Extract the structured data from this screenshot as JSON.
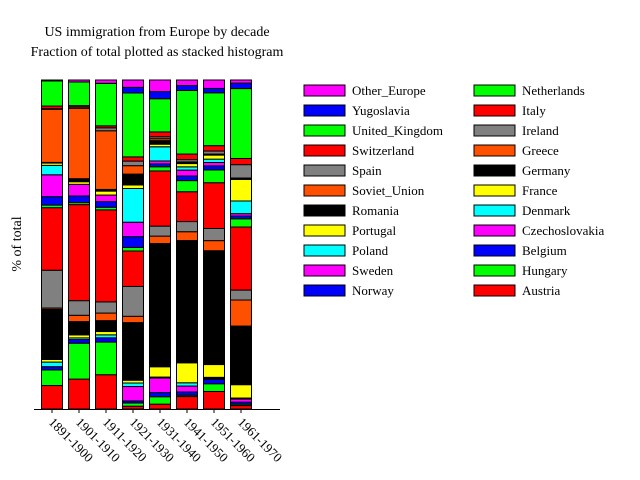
{
  "chart_data": {
    "type": "bar",
    "stacked": true,
    "title": "US immigration from Europe by decade",
    "subtitle": "Fraction of total plotted as stacked histogram",
    "xlabel": "",
    "ylabel": "% of total",
    "ylim": [
      0,
      100
    ],
    "grid": false,
    "legend_position": "right",
    "categories": [
      "1891-1900",
      "1901-1910",
      "1911-1920",
      "1921-1930",
      "1931-1940",
      "1941-1950",
      "1951-1960",
      "1961-1970"
    ],
    "series": [
      {
        "name": "Austria",
        "color": "#ff0000",
        "values": [
          7.2,
          9.0,
          10.4,
          0.8,
          1.5,
          3.8,
          5.2,
          1.0
        ]
      },
      {
        "name": "Hungary",
        "color": "#00ff00",
        "values": [
          4.8,
          10.8,
          9.9,
          0.9,
          2.3,
          0.4,
          2.3,
          0.4
        ]
      },
      {
        "name": "Belgium",
        "color": "#0000ff",
        "values": [
          1.0,
          1.1,
          1.3,
          0.6,
          1.3,
          1.0,
          1.3,
          0.6
        ]
      },
      {
        "name": "Czechoslovakia",
        "color": "#ff00ff",
        "values": [
          0.0,
          0.0,
          0.0,
          4.1,
          4.5,
          1.8,
          0.3,
          0.9
        ]
      },
      {
        "name": "Denmark",
        "color": "#00ffff",
        "values": [
          1.4,
          0.5,
          0.9,
          1.0,
          0.3,
          1.0,
          0.3,
          0.3
        ]
      },
      {
        "name": "France",
        "color": "#ffff00",
        "values": [
          0.8,
          0.9,
          1.0,
          0.8,
          3.2,
          6.1,
          3.8,
          3.9
        ]
      },
      {
        "name": "Germany",
        "color": "#000000",
        "values": [
          15.4,
          4.0,
          3.3,
          16.4,
          38.2,
          37.3,
          33.8,
          17.1
        ]
      },
      {
        "name": "Greece",
        "color": "#ff5000",
        "values": [
          0.4,
          1.9,
          2.3,
          1.8,
          2.3,
          2.7,
          3.0,
          7.6
        ]
      },
      {
        "name": "Ireland",
        "color": "#808080",
        "values": [
          11.6,
          4.4,
          3.4,
          8.5,
          3.1,
          3.1,
          3.6,
          2.9
        ]
      },
      {
        "name": "Italy",
        "color": "#ff0000",
        "values": [
          19.2,
          28.9,
          27.9,
          10.1,
          17.1,
          9.1,
          13.6,
          18.4
        ]
      },
      {
        "name": "Netherlands",
        "color": "#00ff00",
        "values": [
          0.8,
          0.6,
          0.8,
          1.0,
          1.3,
          3.4,
          3.8,
          2.4
        ]
      },
      {
        "name": "Norway",
        "color": "#0000ff",
        "values": [
          2.6,
          2.0,
          1.7,
          3.1,
          0.9,
          1.4,
          1.2,
          0.8
        ]
      },
      {
        "name": "Sweden",
        "color": "#ff00ff",
        "values": [
          6.7,
          3.5,
          2.0,
          4.1,
          0.9,
          1.8,
          1.0,
          0.7
        ]
      },
      {
        "name": "Poland",
        "color": "#00ffff",
        "values": [
          2.9,
          0.0,
          0.0,
          9.6,
          4.4,
          1.0,
          1.0,
          3.7
        ]
      },
      {
        "name": "Portugal",
        "color": "#ffff00",
        "values": [
          0.7,
          0.8,
          1.2,
          1.0,
          0.8,
          1.0,
          1.2,
          6.3
        ]
      },
      {
        "name": "Romania",
        "color": "#000000",
        "values": [
          0.2,
          0.9,
          0.5,
          3.1,
          1.1,
          0.3,
          0.2,
          0.2
        ]
      },
      {
        "name": "Soviet_Union",
        "color": "#ff5000",
        "values": [
          16.3,
          21.2,
          17.8,
          2.4,
          0.6,
          0.2,
          0.1,
          0.2
        ]
      },
      {
        "name": "Spain",
        "color": "#808080",
        "values": [
          0.2,
          0.4,
          0.9,
          1.3,
          0.6,
          0.7,
          0.9,
          3.9
        ]
      },
      {
        "name": "Switzerland",
        "color": "#ff0000",
        "values": [
          0.8,
          0.4,
          0.6,
          1.2,
          1.5,
          1.7,
          1.6,
          1.8
        ]
      },
      {
        "name": "United_Kingdom",
        "color": "#00ff00",
        "values": [
          7.7,
          7.1,
          12.9,
          18.2,
          10.3,
          19.4,
          15.7,
          20.4
        ]
      },
      {
        "name": "Yugoslavia",
        "color": "#0000ff",
        "values": [
          0.0,
          0.0,
          0.0,
          1.6,
          2.2,
          1.5,
          1.3,
          1.6
        ]
      },
      {
        "name": "Other_Europe",
        "color": "#ff00ff",
        "values": [
          0.3,
          0.6,
          1.0,
          2.1,
          3.6,
          1.7,
          2.5,
          0.9
        ]
      }
    ]
  }
}
